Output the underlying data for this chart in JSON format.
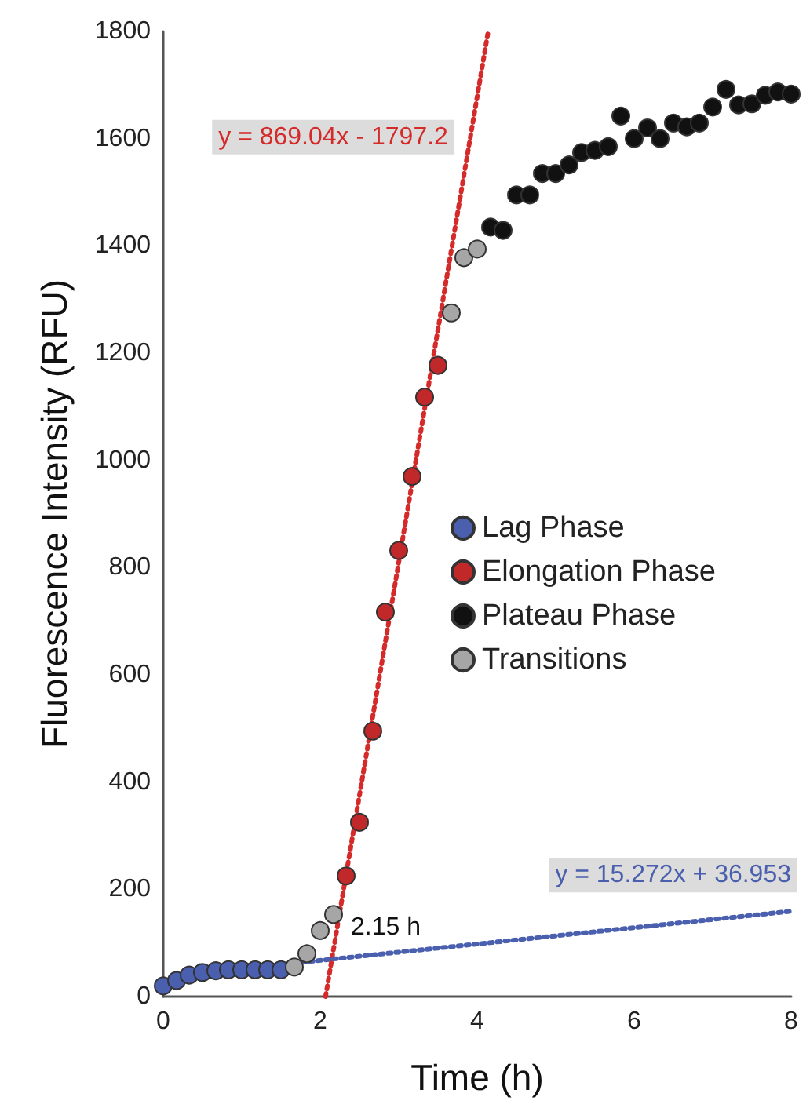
{
  "chart_data": {
    "type": "scatter",
    "xlabel": "Time (h)",
    "ylabel": "Fluorescence Intensity (RFU)",
    "xlim": [
      0,
      8
    ],
    "xticks": [
      0,
      2,
      4,
      6,
      8
    ],
    "ylim": [
      0,
      1800
    ],
    "yticks": [
      0,
      200,
      400,
      600,
      800,
      1000,
      1200,
      1400,
      1600,
      1800
    ],
    "grid": false,
    "legend": "right",
    "marker": "circle",
    "series": [
      {
        "name": "Lag Phase",
        "color": "#4a5fad",
        "x": [
          0,
          0.17,
          0.33,
          0.5,
          0.67,
          0.83,
          1,
          1.17,
          1.33,
          1.5
        ],
        "values": [
          20,
          30,
          40,
          45,
          48,
          50,
          50,
          50,
          50,
          50
        ]
      },
      {
        "name": "Elongation Phase",
        "color": "#c0282a",
        "x": [
          2.33,
          2.5,
          2.67,
          2.83,
          3,
          3.17,
          3.33,
          3.5
        ],
        "values": [
          225,
          325,
          495,
          717,
          832,
          970,
          1118,
          1177
        ]
      },
      {
        "name": "Plateau Phase",
        "color": "#111111",
        "x": [
          4.17,
          4.33,
          4.5,
          4.67,
          4.83,
          5,
          5.17,
          5.33,
          5.5,
          5.67,
          5.83,
          6,
          6.17,
          6.33,
          6.5,
          6.67,
          6.83,
          7,
          7.17,
          7.33,
          7.5,
          7.67,
          7.83,
          8
        ],
        "values": [
          1435,
          1429,
          1495,
          1495,
          1535,
          1535,
          1551,
          1574,
          1578,
          1585,
          1642,
          1600,
          1620,
          1600,
          1629,
          1622,
          1629,
          1659,
          1692,
          1663,
          1665,
          1681,
          1687,
          1683
        ]
      },
      {
        "name": "Transitions",
        "color": "#a6a6a6",
        "x": [
          1.67,
          1.83,
          2,
          2.17,
          3.67,
          3.83,
          4
        ],
        "values": [
          55,
          80,
          123,
          153,
          1275,
          1378,
          1394
        ]
      },
      {
        "type": "line",
        "color": "#d42a2a",
        "line_style": "dotted",
        "marker": "none",
        "x": [
          2.068,
          4.14
        ],
        "values": [
          0,
          1800
        ]
      },
      {
        "type": "line",
        "color": "#4a5fad",
        "line_style": "dotted",
        "marker": "none",
        "x": [
          1.67,
          8
        ],
        "values": [
          62.5,
          159.1
        ]
      }
    ],
    "annotations": [
      {
        "text": "y = 869.04x - 1797.2",
        "x": 3.909,
        "y": 1600
      },
      {
        "text": "y = 15.272x + 36.953",
        "x": 8,
        "y": 159.1
      },
      {
        "text": "2.15 h",
        "x": 2.15,
        "y": 69.8
      }
    ]
  }
}
